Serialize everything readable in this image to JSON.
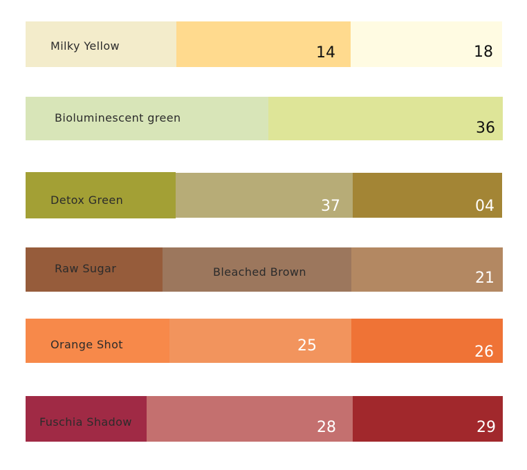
{
  "rows": [
    {
      "name": "Milky Yellow",
      "swatches": [
        {
          "color": "#F3ECCB",
          "label": ""
        },
        {
          "color": "#FFDA8E",
          "label": "14"
        },
        {
          "color": "#FFFBE2",
          "label": "18"
        }
      ]
    },
    {
      "name": "Bioluminescent green",
      "swatches": [
        {
          "color": "#D8E5B8",
          "label": ""
        },
        {
          "color": "#DEE598",
          "label": "36"
        }
      ]
    },
    {
      "name": "Detox Green",
      "swatches": [
        {
          "color": "#A3A035",
          "label": ""
        },
        {
          "color": "#B7AC77",
          "label": "37"
        },
        {
          "color": "#A38535",
          "label": "04"
        }
      ]
    },
    {
      "name": "Raw Sugar",
      "swatches": [
        {
          "color": "#965C3B",
          "label": ""
        },
        {
          "color": "#9C775D",
          "label": "Bleached Brown"
        },
        {
          "color": "#B38862",
          "label": "21"
        }
      ]
    },
    {
      "name": "Orange Shot",
      "swatches": [
        {
          "color": "#F7894A",
          "label": ""
        },
        {
          "color": "#F2945D",
          "label": "25"
        },
        {
          "color": "#EF7336",
          "label": "26"
        }
      ]
    },
    {
      "name": "Fuschia Shadow",
      "swatches": [
        {
          "color": "#A02A45",
          "label": ""
        },
        {
          "color": "#C4706F",
          "label": "28"
        },
        {
          "color": "#A1282C",
          "label": "29"
        }
      ]
    }
  ]
}
